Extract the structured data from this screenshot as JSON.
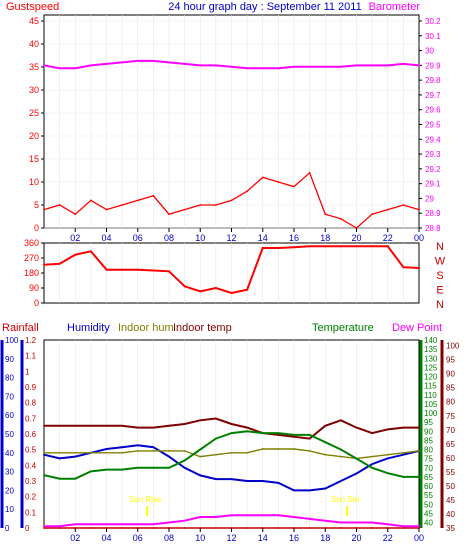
{
  "header": {
    "title": "24 hour graph day : September 11 2011",
    "left_label": "Gustspeed",
    "right_label": "Barometer"
  },
  "colors": {
    "gust": "#ff0000",
    "avg_wind": "#0000cc",
    "barometer": "#ff00ff",
    "direction": "#ff0000",
    "rainfall": "#cc0000",
    "humidity": "#0000cc",
    "indoor_hum": "#808000",
    "indoor_temp": "#800000",
    "temperature": "#008000",
    "dew_point": "#ff00ff",
    "sun": "#ffff00",
    "axis_frame": "#000000"
  },
  "x_ticks": [
    "02",
    "04",
    "06",
    "08",
    "10",
    "12",
    "14",
    "16",
    "18",
    "20",
    "22",
    "00"
  ],
  "panel1": {
    "left_ticks": [
      "45",
      "40",
      "35",
      "30",
      "25",
      "20",
      "15",
      "10",
      "5",
      "0"
    ],
    "right_ticks": [
      "30.2",
      "30.1",
      "30",
      "29.9",
      "29.8",
      "29.7",
      "29.6",
      "29.5",
      "29.4",
      "29.3",
      "29.2",
      "29.1",
      "29",
      "28.9",
      "28.8"
    ]
  },
  "panel2": {
    "left_ticks": [
      "360",
      "270",
      "180",
      "90",
      "0"
    ],
    "compass": [
      "N",
      "W",
      "S",
      "E",
      "N"
    ]
  },
  "panel3": {
    "legend": {
      "rainfall": "Rainfall",
      "humidity": "Humidity",
      "indoor_hum": "Indoor hum",
      "indoor_temp": "Indoor temp",
      "temperature": "Temperature",
      "dew_point": "Dew Point"
    },
    "humidity_ticks": [
      "100",
      "90",
      "80",
      "70",
      "60",
      "50",
      "40",
      "30",
      "20",
      "10",
      "0"
    ],
    "rain_ticks": [
      "1.2",
      "1.1",
      "1",
      "0.9",
      "0.8",
      "0.7",
      "0.6",
      "0.5",
      "0.4",
      "0.3",
      "0.2",
      "0.1",
      "0"
    ],
    "temp_ticks": [
      "140",
      "135",
      "130",
      "125",
      "120",
      "115",
      "110",
      "105",
      "100",
      "95",
      "90",
      "85",
      "80",
      "75",
      "70",
      "65",
      "60",
      "55",
      "50",
      "45",
      "40"
    ],
    "dew_ticks": [
      "100",
      "95",
      "90",
      "85",
      "80",
      "75",
      "70",
      "65",
      "60",
      "55",
      "50",
      "45",
      "40",
      "35"
    ],
    "sunrise_label": "Sun Rise",
    "sunset_label": "Sun Set"
  },
  "chart_data": [
    {
      "type": "line",
      "x_unit": "hour",
      "x": [
        0,
        1,
        2,
        3,
        4,
        5,
        6,
        7,
        8,
        9,
        10,
        11,
        12,
        13,
        14,
        15,
        16,
        17,
        18,
        19,
        20,
        21,
        22,
        23,
        24
      ],
      "series": [
        {
          "name": "Gustspeed",
          "axis": "left",
          "values": [
            4,
            5,
            3,
            6,
            4,
            5,
            6,
            7,
            3,
            4,
            5,
            5,
            6,
            8,
            11,
            10,
            9,
            12,
            3,
            2,
            0,
            3,
            4,
            5,
            4
          ]
        },
        {
          "name": "Barometer",
          "axis": "right",
          "values": [
            29.9,
            29.88,
            29.88,
            29.9,
            29.91,
            29.92,
            29.93,
            29.93,
            29.92,
            29.91,
            29.9,
            29.9,
            29.89,
            29.88,
            29.88,
            29.88,
            29.89,
            29.89,
            29.89,
            29.89,
            29.9,
            29.9,
            29.9,
            29.91,
            29.9
          ]
        }
      ],
      "ylim_left": [
        0,
        45
      ],
      "ylim_right": [
        28.8,
        30.2
      ]
    },
    {
      "type": "line",
      "x_unit": "hour",
      "x": [
        0,
        1,
        2,
        3,
        4,
        5,
        6,
        7,
        8,
        9,
        10,
        11,
        12,
        13,
        14,
        15,
        16,
        17,
        18,
        19,
        20,
        21,
        22,
        23,
        24
      ],
      "series": [
        {
          "name": "Wind direction",
          "values": [
            230,
            235,
            290,
            310,
            200,
            200,
            200,
            195,
            190,
            100,
            70,
            90,
            60,
            80,
            330,
            330,
            335,
            340,
            340,
            340,
            340,
            340,
            340,
            215,
            210
          ]
        }
      ],
      "ylim": [
        0,
        360
      ]
    },
    {
      "type": "line",
      "x_unit": "hour",
      "x": [
        0,
        1,
        2,
        3,
        4,
        5,
        6,
        7,
        8,
        9,
        10,
        11,
        12,
        13,
        14,
        15,
        16,
        17,
        18,
        19,
        20,
        21,
        22,
        23,
        24
      ],
      "series": [
        {
          "name": "Rainfall",
          "axis": "rain",
          "values": [
            0,
            0,
            0,
            0,
            0,
            0,
            0,
            0,
            0,
            0,
            0,
            0,
            0,
            0,
            0,
            0,
            0,
            0,
            0,
            0,
            0,
            0,
            0,
            0,
            0
          ]
        },
        {
          "name": "Humidity",
          "axis": "humidity",
          "values": [
            39,
            37,
            38,
            40,
            42,
            43,
            44,
            43,
            38,
            32,
            28,
            26,
            26,
            25,
            25,
            24,
            20,
            20,
            21,
            25,
            29,
            34,
            37,
            39,
            41
          ]
        },
        {
          "name": "Indoor hum",
          "axis": "humidity",
          "values": [
            40,
            40,
            40,
            40,
            40,
            40,
            41,
            41,
            41,
            41,
            38,
            39,
            40,
            40,
            42,
            42,
            42,
            41,
            39,
            38,
            37,
            38,
            39,
            40,
            41
          ]
        },
        {
          "name": "Indoor temp",
          "axis": "temp",
          "values": [
            93,
            93,
            93,
            93,
            93,
            93,
            92,
            92,
            93,
            94,
            96,
            97,
            94,
            92,
            89,
            88,
            87,
            86,
            93,
            96,
            92,
            89,
            91,
            92,
            92
          ]
        },
        {
          "name": "Temperature",
          "axis": "temp",
          "values": [
            66,
            64,
            64,
            68,
            69,
            69,
            70,
            70,
            70,
            74,
            80,
            86,
            89,
            90,
            89,
            89,
            88,
            88,
            84,
            80,
            75,
            70,
            67,
            65,
            65
          ]
        },
        {
          "name": "Dew Point",
          "axis": "temp",
          "values": [
            38,
            38,
            39,
            39,
            39,
            39,
            39,
            39,
            40,
            41,
            43,
            43,
            44,
            44,
            44,
            44,
            43,
            42,
            41,
            40,
            40,
            40,
            39,
            38,
            38
          ]
        }
      ],
      "ylim_humidity": [
        0,
        100
      ],
      "ylim_rain": [
        0,
        1.2
      ],
      "ylim_temp": [
        37,
        140
      ],
      "sunrise_hour": 6.6,
      "sunset_hour": 19.4
    }
  ]
}
